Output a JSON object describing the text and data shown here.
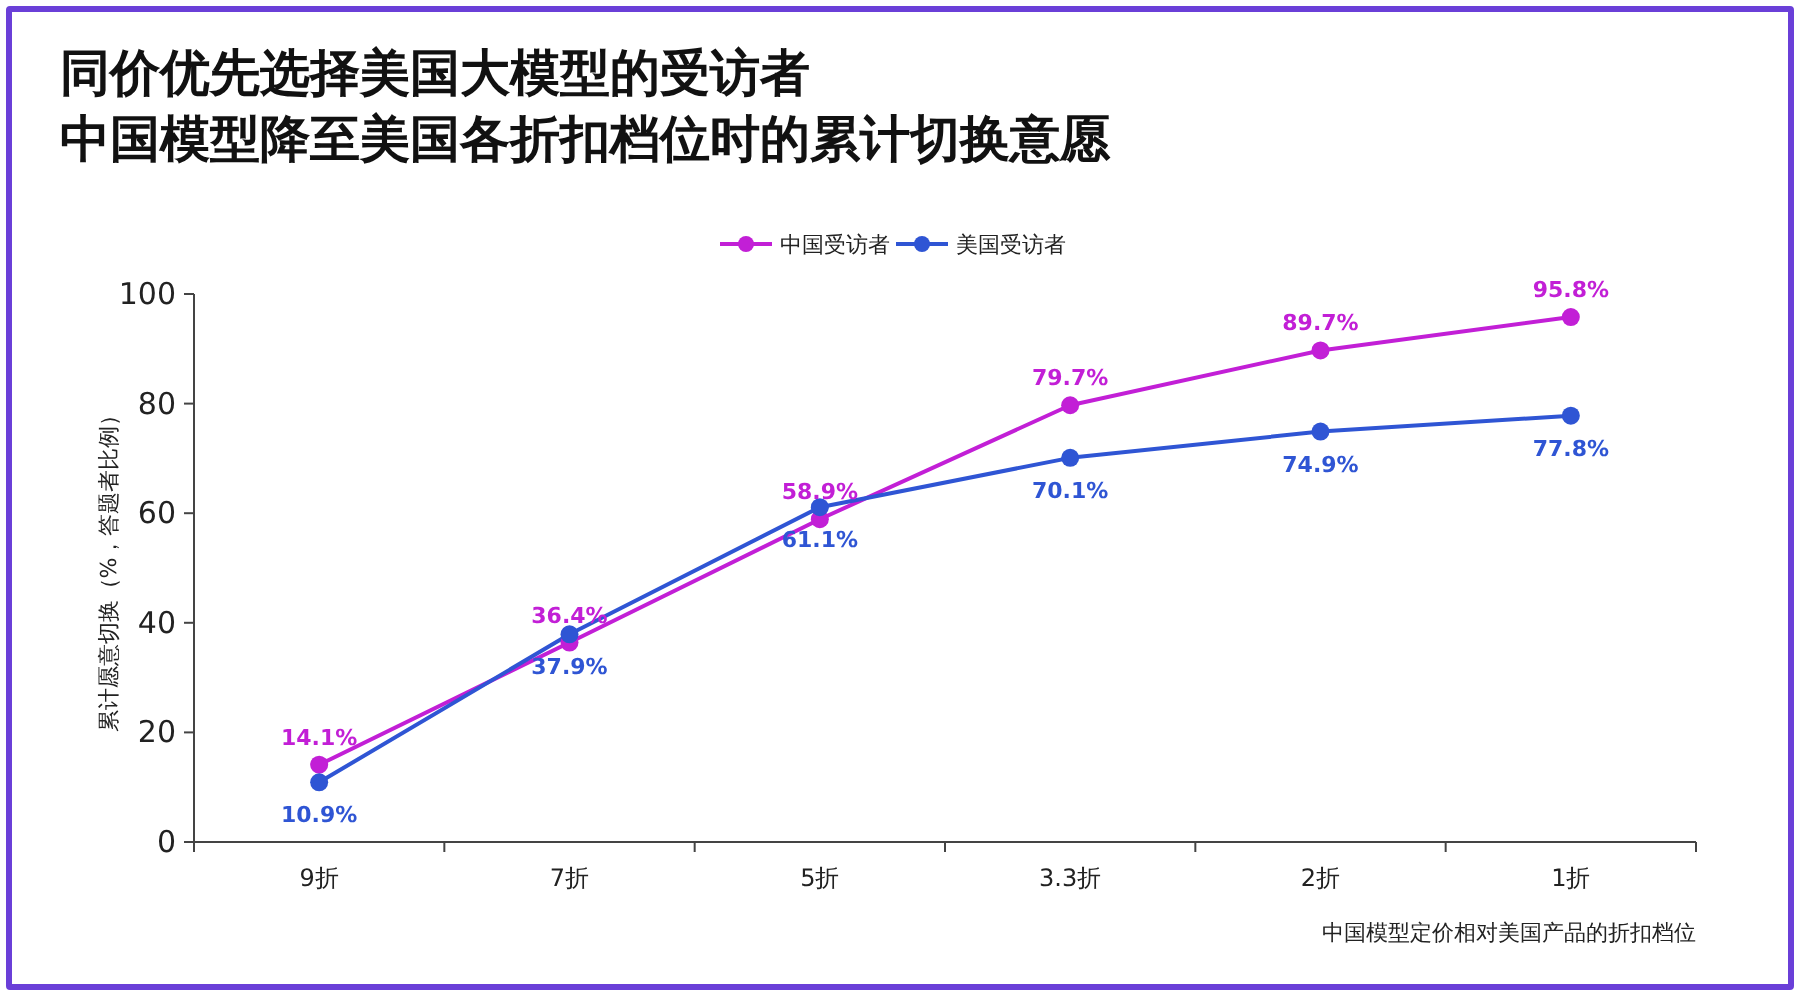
{
  "chart_data": {
    "type": "line",
    "title": "同价优先选择美国大模型的受访者",
    "subtitle": "中国模型降至美国各折扣档位时的累计切换意愿",
    "xlabel": "中国模型定价相对美国产品的折扣档位",
    "ylabel": "累计愿意切换（%，答题者比例）",
    "categories": [
      "9折",
      "7折",
      "5折",
      "3.3折",
      "2折",
      "1折"
    ],
    "series": [
      {
        "name": "中国受访者",
        "color": "#c21fd6",
        "values": [
          14.1,
          36.4,
          58.9,
          79.7,
          89.7,
          95.8
        ],
        "value_labels": [
          "14.1%",
          "36.4%",
          "58.9%",
          "79.7%",
          "89.7%",
          "95.8%"
        ]
      },
      {
        "name": "美国受访者",
        "color": "#2f55d4",
        "values": [
          10.9,
          37.9,
          61.1,
          70.1,
          74.9,
          77.8
        ],
        "value_labels": [
          "10.9%",
          "37.9%",
          "61.1%",
          "70.1%",
          "74.9%",
          "77.8%"
        ]
      }
    ],
    "ylim": [
      0,
      100
    ],
    "yticks": [
      0,
      20,
      40,
      60,
      80,
      100
    ],
    "grid": false,
    "legend": "top",
    "marker": "circle",
    "line_style": "solid"
  }
}
